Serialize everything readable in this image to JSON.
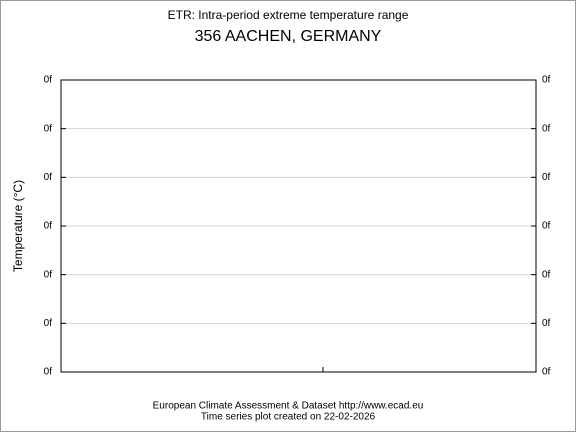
{
  "chart_data": {
    "type": "line",
    "title": "ETR: Intra-period extreme temperature range",
    "subtitle": "356 AACHEN, GERMANY",
    "y_label": "Temperature (°C)",
    "series": [],
    "ylim": [
      0,
      6
    ],
    "yticks": [
      {
        "value": 0,
        "label": "0f"
      },
      {
        "value": 1,
        "label": "0f"
      },
      {
        "value": 2,
        "label": "0f"
      },
      {
        "value": 3,
        "label": "0f"
      },
      {
        "value": 4,
        "label": "0f"
      },
      {
        "value": 5,
        "label": "0f"
      },
      {
        "value": 6,
        "label": "0f"
      }
    ],
    "grid": true,
    "footer": [
      "European Climate Assessment & Dataset  http://www.ecad.eu",
      "Time series plot created on 22-02-2026"
    ]
  }
}
